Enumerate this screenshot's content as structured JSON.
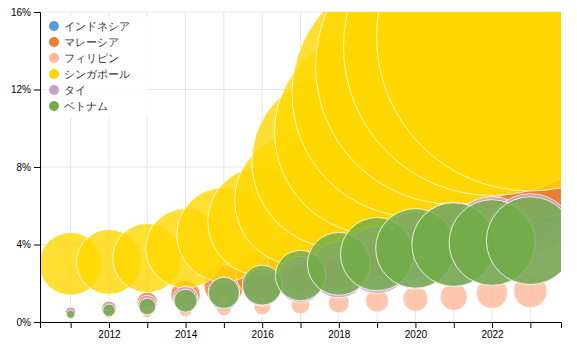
{
  "chart_data": {
    "type": "scatter",
    "marker": "circle",
    "x": [
      2011,
      2012,
      2013,
      2014,
      2015,
      2016,
      2017,
      2018,
      2019,
      2020,
      2021,
      2022,
      2023
    ],
    "series": [
      {
        "name": "インドネシア",
        "color": "#5b9bd5",
        "values": [
          0.5,
          0.6,
          0.8,
          1.0,
          1.3,
          1.7,
          2.2,
          2.9,
          3.8,
          4.9,
          5.8,
          7.0,
          8.0
        ]
      },
      {
        "name": "マレーシア",
        "color": "#ed7d31",
        "values": [
          0.5,
          0.7,
          1.0,
          1.4,
          1.9,
          2.5,
          3.1,
          3.7,
          5.0,
          6.5,
          8.5,
          11.0,
          11.7
        ]
      },
      {
        "name": "フィリピン",
        "color": "#ffb89a",
        "values": [
          0.3,
          0.4,
          0.5,
          0.6,
          0.7,
          0.8,
          0.9,
          1.0,
          1.1,
          1.2,
          1.3,
          1.5,
          1.6
        ]
      },
      {
        "name": "シンガポール",
        "color": "#ffd700",
        "values": [
          3.0,
          3.1,
          3.3,
          3.8,
          4.5,
          5.2,
          6.3,
          8.3,
          9.8,
          11.8,
          13.2,
          14.2,
          14.7
        ]
      },
      {
        "name": "タイ",
        "color": "#c8a2c8",
        "values": [
          0.5,
          0.7,
          0.9,
          1.2,
          1.5,
          1.8,
          2.2,
          2.7,
          3.2,
          3.7,
          4.0,
          4.2,
          4.3
        ]
      },
      {
        "name": "ベトナム",
        "color": "#70ad47",
        "values": [
          0.4,
          0.6,
          0.8,
          1.1,
          1.5,
          1.9,
          2.4,
          3.0,
          3.5,
          3.8,
          4.0,
          4.1,
          4.2
        ]
      }
    ],
    "xlim": [
      2010.2,
      2023.8
    ],
    "xticks": [
      {
        "value": 2011,
        "label": null
      },
      2012,
      {
        "value": 2013,
        "label": null
      },
      2014,
      {
        "value": 2015,
        "label": null
      },
      2016,
      {
        "value": 2017,
        "label": null
      },
      2018,
      {
        "value": 2019,
        "label": null
      },
      2020,
      {
        "value": 2021,
        "label": null
      },
      2022,
      {
        "value": 2023,
        "label": null
      }
    ],
    "ylim": [
      0,
      16
    ],
    "yticks": [
      {
        "value": 0,
        "label": "0%"
      },
      {
        "value": 4,
        "label": "4%"
      },
      {
        "value": 8,
        "label": "8%"
      },
      {
        "value": 12,
        "label": "12%"
      },
      {
        "value": 16,
        "label": "16%"
      }
    ],
    "grid": true,
    "legend": "upper-left"
  }
}
